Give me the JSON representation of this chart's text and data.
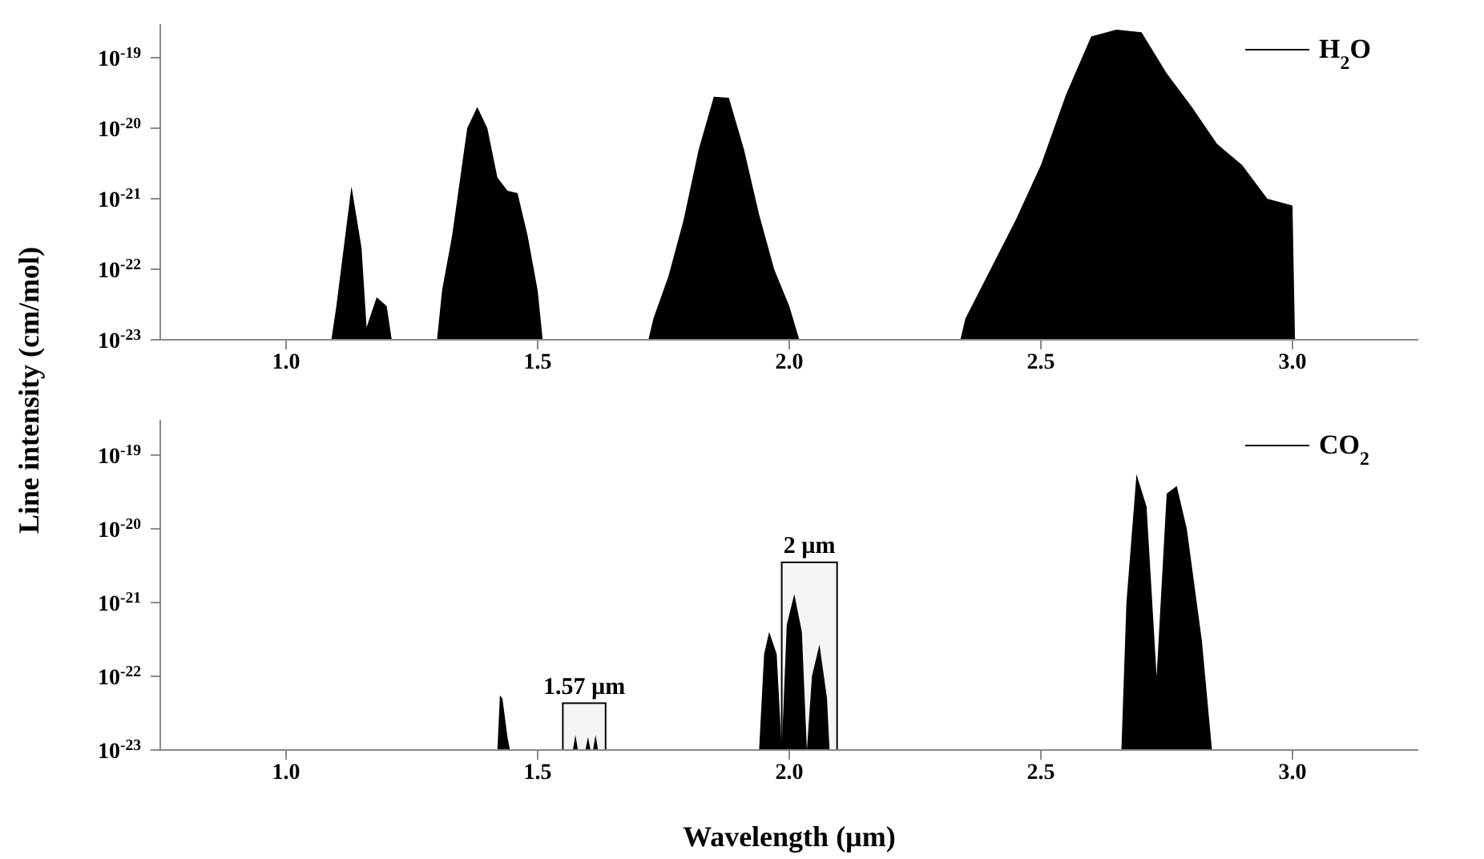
{
  "chart_data": [
    {
      "type": "area",
      "ylabel": "Line intensity (cm/mol)",
      "log": "y",
      "legend": "top right",
      "grid": false,
      "tick_labels": "xy",
      "xlim": [
        0.75,
        3.25
      ],
      "xticks": [
        {
          "value": 1.0,
          "label": "1.0"
        },
        {
          "value": 1.5,
          "label": "1.5"
        },
        {
          "value": 2.0,
          "label": "2.0"
        },
        {
          "value": 2.5,
          "label": "2.5"
        },
        {
          "value": 3.0,
          "label": "3.0"
        }
      ],
      "ylim": [
        1e-23,
        3e-19
      ],
      "yticks": [
        {
          "value": 1e-23,
          "label": "10$^{-23}$"
        },
        {
          "value": 1e-22,
          "label": "10$^{-22}$"
        },
        {
          "value": 1e-21,
          "label": "10$^{-21}$"
        },
        {
          "value": 1e-20,
          "label": "10$^{-20}$"
        },
        {
          "value": 1e-19,
          "label": "10$^{-19}$"
        }
      ],
      "series": [
        {
          "name": "H$_{2}$O",
          "color": "#000000",
          "x": [
            0.75,
            1.09,
            1.1,
            1.13,
            1.15,
            1.16,
            1.18,
            1.2,
            1.21,
            1.3,
            1.31,
            1.33,
            1.36,
            1.38,
            1.4,
            1.42,
            1.44,
            1.46,
            1.48,
            1.5,
            1.51,
            1.72,
            1.73,
            1.76,
            1.79,
            1.82,
            1.85,
            1.88,
            1.91,
            1.94,
            1.97,
            2.0,
            2.02,
            2.34,
            2.35,
            2.4,
            2.45,
            2.5,
            2.55,
            2.6,
            2.65,
            2.7,
            2.75,
            2.8,
            2.85,
            2.9,
            2.95,
            3.0,
            3.005,
            3.25
          ],
          "values": [
            1e-23,
            1e-23,
            3e-23,
            1.5e-21,
            2e-22,
            1.5e-23,
            4e-23,
            3e-23,
            1e-23,
            1e-23,
            5e-23,
            3e-22,
            1e-20,
            2e-20,
            1e-20,
            2e-21,
            1.3e-21,
            1.2e-21,
            3e-22,
            5e-23,
            1e-23,
            1e-23,
            2e-23,
            8e-23,
            5e-22,
            5e-21,
            2.8e-20,
            2.7e-20,
            5e-21,
            6e-22,
            1e-22,
            3e-23,
            1e-23,
            1e-23,
            2e-23,
            1e-22,
            5e-22,
            3e-21,
            3e-20,
            2e-19,
            2.5e-19,
            2.3e-19,
            6e-20,
            2e-20,
            6e-21,
            3e-21,
            1e-21,
            8e-22,
            1e-23,
            1e-23
          ]
        }
      ]
    },
    {
      "type": "area",
      "xlabel": "Wavelength (µm)",
      "log": "y",
      "legend": "top right",
      "grid": false,
      "xlim": [
        0.75,
        3.25
      ],
      "xticks": [
        {
          "value": 1.0,
          "label": "1.0"
        },
        {
          "value": 1.5,
          "label": "1.5"
        },
        {
          "value": 2.0,
          "label": "2.0"
        },
        {
          "value": 2.5,
          "label": "2.5"
        },
        {
          "value": 3.0,
          "label": "3.0"
        }
      ],
      "ylim": [
        1e-23,
        3e-19
      ],
      "yticks": [
        {
          "value": 1e-23,
          "label": "10$^{-23}$"
        },
        {
          "value": 1e-22,
          "label": "10$^{-22}$"
        },
        {
          "value": 1e-21,
          "label": "10$^{-21}$"
        },
        {
          "value": 1e-20,
          "label": "10$^{-20}$"
        },
        {
          "value": 1e-19,
          "label": "10$^{-19}$"
        }
      ],
      "bands": [
        {
          "axis": "x",
          "from": 1.55,
          "to": 1.635,
          "label": "1.57 µm",
          "color": "#f4f4f4"
        },
        {
          "axis": "x",
          "from": 1.985,
          "to": 2.095,
          "label": "2 µm",
          "color": "#f4f4f4"
        }
      ],
      "series": [
        {
          "name": "CO$_{2}$",
          "color": "#000000",
          "x": [
            0.75,
            1.42,
            1.425,
            1.43,
            1.44,
            1.445,
            1.57,
            1.575,
            1.58,
            1.595,
            1.6,
            1.605,
            1.61,
            1.615,
            1.62,
            1.94,
            1.95,
            1.96,
            1.975,
            1.985,
            1.995,
            2.01,
            2.025,
            2.035,
            2.045,
            2.06,
            2.075,
            2.08,
            2.66,
            2.67,
            2.69,
            2.71,
            2.73,
            2.75,
            2.77,
            2.79,
            2.82,
            2.84,
            3.25
          ],
          "values": [
            1e-23,
            1e-23,
            5.5e-23,
            5e-23,
            1.5e-23,
            1e-23,
            1e-23,
            1.6e-23,
            1e-23,
            1e-23,
            1.5e-23,
            1e-23,
            1e-23,
            1.6e-23,
            1e-23,
            1e-23,
            2e-22,
            4e-22,
            2e-22,
            1e-23,
            5e-22,
            1.3e-21,
            4e-22,
            1e-23,
            1e-22,
            2.7e-22,
            5e-23,
            1e-23,
            1e-23,
            1e-21,
            5.5e-20,
            2e-20,
            1e-22,
            3e-20,
            3.8e-20,
            1e-20,
            3e-22,
            1e-23,
            1e-23
          ]
        }
      ]
    }
  ]
}
